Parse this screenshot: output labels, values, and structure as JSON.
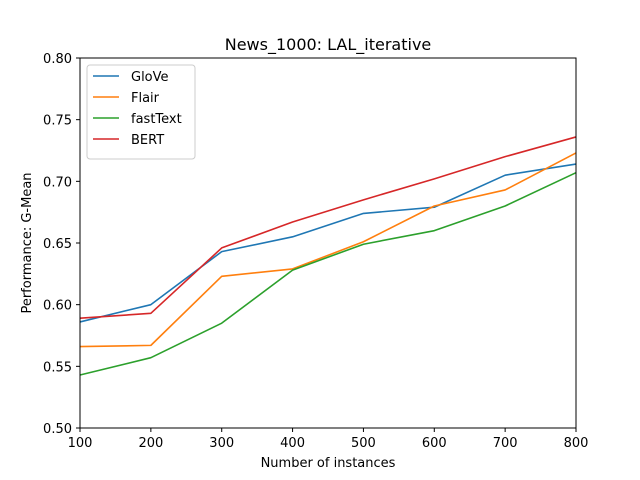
{
  "chart_data": {
    "type": "line",
    "title": "News_1000: LAL_iterative",
    "xlabel": "Number of instances",
    "ylabel": "Performance: G-Mean",
    "x": [
      100,
      200,
      300,
      400,
      500,
      600,
      700,
      800
    ],
    "xlim": [
      100,
      800
    ],
    "ylim": [
      0.5,
      0.8
    ],
    "xticks": [
      "100",
      "200",
      "300",
      "400",
      "500",
      "600",
      "700",
      "800"
    ],
    "yticks": [
      "0.50",
      "0.55",
      "0.60",
      "0.65",
      "0.70",
      "0.75",
      "0.80"
    ],
    "grid": false,
    "legend_position": "top-left",
    "series": [
      {
        "name": "GloVe",
        "color": "#1f77b4",
        "values": [
          0.586,
          0.6,
          0.643,
          0.655,
          0.674,
          0.679,
          0.705,
          0.714
        ]
      },
      {
        "name": "Flair",
        "color": "#ff7f0e",
        "values": [
          0.566,
          0.567,
          0.623,
          0.629,
          0.651,
          0.68,
          0.693,
          0.723
        ]
      },
      {
        "name": "fastText",
        "color": "#2ca02c",
        "values": [
          0.543,
          0.557,
          0.585,
          0.628,
          0.649,
          0.66,
          0.68,
          0.707
        ]
      },
      {
        "name": "BERT",
        "color": "#d62728",
        "values": [
          0.589,
          0.593,
          0.646,
          0.667,
          0.685,
          0.702,
          0.72,
          0.736
        ]
      }
    ]
  }
}
